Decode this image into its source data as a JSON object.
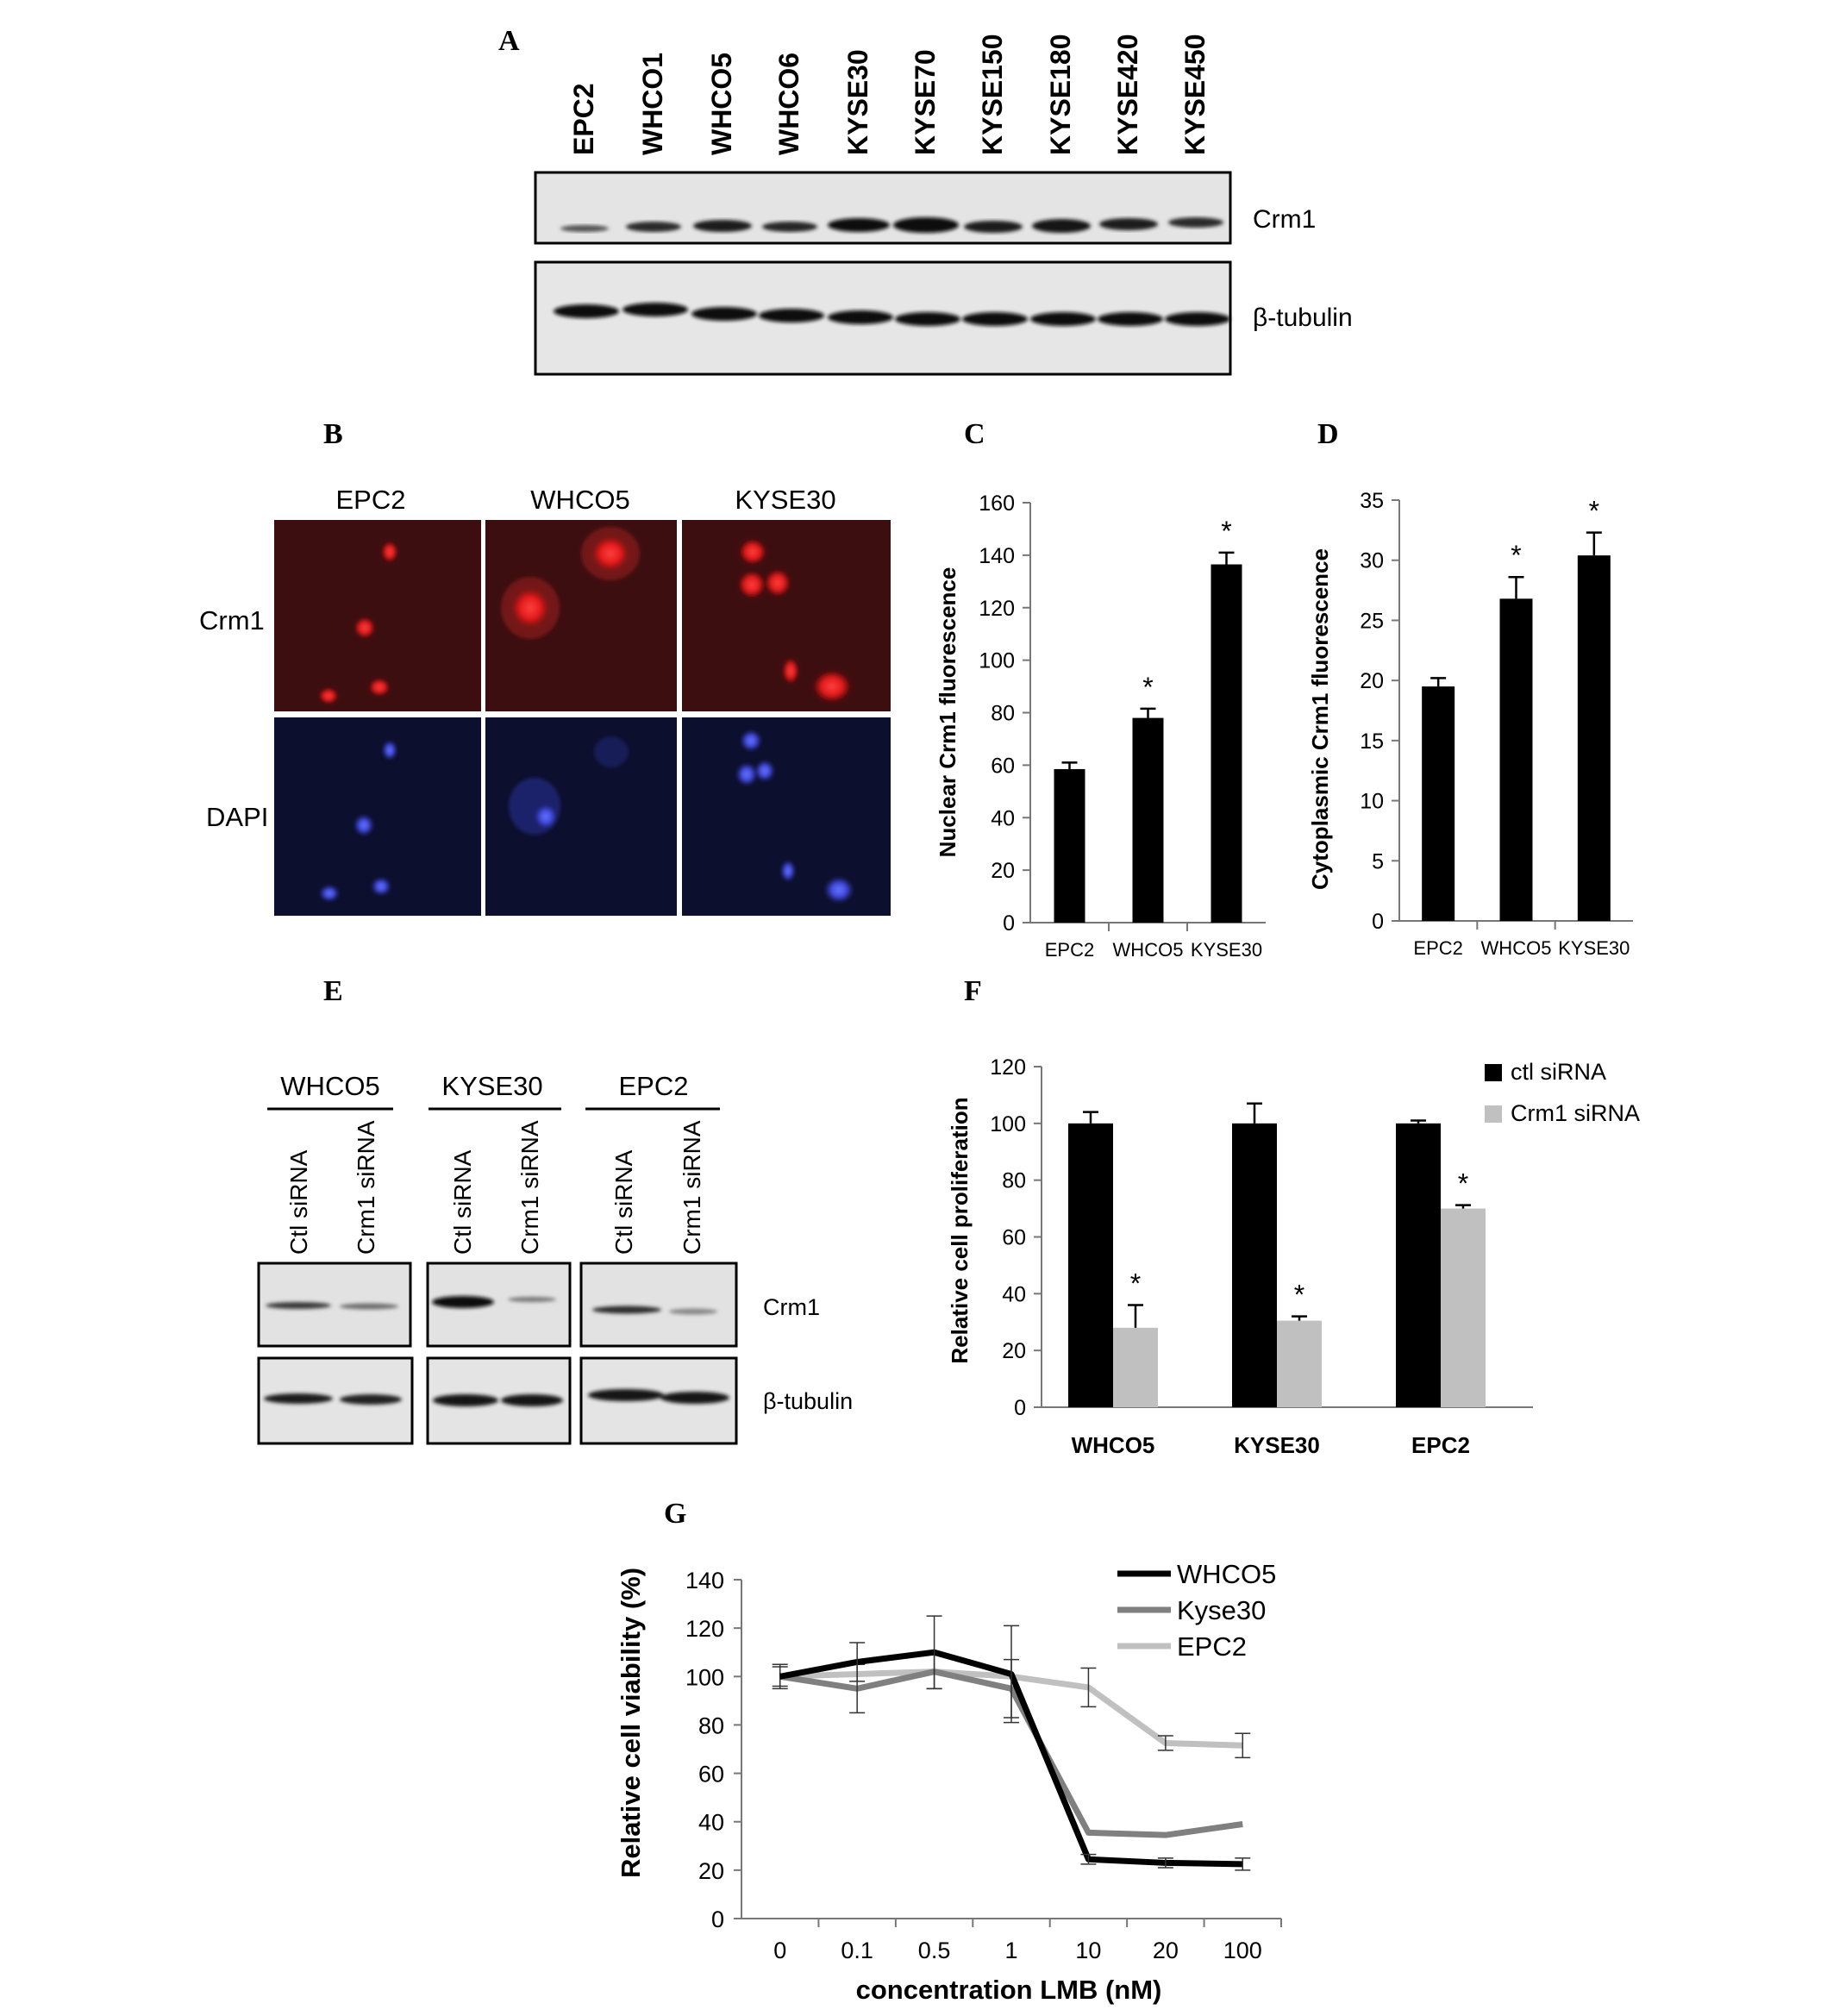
{
  "panels": {
    "A": {
      "letter": "A",
      "lanes": [
        "EPC2",
        "WHCO1",
        "WHCO5",
        "WHCO6",
        "KYSE30",
        "KYSE70",
        "KYSE150",
        "KYSE180",
        "KYSE420",
        "KYSE450"
      ],
      "blot_labels": [
        "Crm1",
        "β-tubulin"
      ]
    },
    "B": {
      "letter": "B",
      "columns": [
        "EPC2",
        "WHCO5",
        "KYSE30"
      ],
      "rows": [
        "Crm1",
        "DAPI"
      ]
    },
    "E": {
      "letter": "E",
      "groups": [
        "WHCO5",
        "KYSE30",
        "EPC2"
      ],
      "lanes": [
        "Ctl siRNA",
        "Crm1 siRNA"
      ],
      "blot_labels": [
        "Crm1",
        "β-tubulin"
      ]
    }
  },
  "chart_data": [
    {
      "id": "C",
      "letter": "C",
      "type": "bar",
      "categories": [
        "EPC2",
        "WHCO5",
        "KYSE30"
      ],
      "values": [
        58.5,
        78,
        136.5
      ],
      "errors": [
        2.5,
        3.5,
        4.5
      ],
      "significance": [
        "",
        "*",
        "*"
      ],
      "ylabel": "Nuclear Crm1 fluorescence",
      "ylim": [
        0,
        160
      ],
      "yticks": [
        0,
        20,
        40,
        60,
        80,
        100,
        120,
        140,
        160
      ],
      "color": "#000000"
    },
    {
      "id": "D",
      "letter": "D",
      "type": "bar",
      "categories": [
        "EPC2",
        "WHCO5",
        "KYSE30"
      ],
      "values": [
        19.5,
        26.8,
        30.4
      ],
      "errors": [
        0.7,
        1.8,
        1.9
      ],
      "significance": [
        "",
        "*",
        "*"
      ],
      "ylabel": "Cytoplasmic Crm1  fluorescence",
      "ylim": [
        0,
        35
      ],
      "yticks": [
        0,
        5,
        10,
        15,
        20,
        25,
        30,
        35
      ],
      "color": "#000000"
    },
    {
      "id": "F",
      "letter": "F",
      "type": "bar",
      "categories": [
        "WHCO5",
        "KYSE30",
        "EPC2"
      ],
      "series": [
        {
          "name": "ctl siRNA",
          "values": [
            100,
            100,
            100
          ],
          "errors": [
            4,
            7,
            1
          ],
          "significance": [
            "",
            "",
            ""
          ],
          "color": "#000000"
        },
        {
          "name": "Crm1 siRNA",
          "values": [
            28,
            30.5,
            70
          ],
          "errors": [
            8,
            1.5,
            1.2
          ],
          "significance": [
            "*",
            "*",
            "*"
          ],
          "color": "#c0c0c0"
        }
      ],
      "ylabel": "Relative cell proliferation",
      "ylim": [
        0,
        120
      ],
      "yticks": [
        0,
        20,
        40,
        60,
        80,
        100,
        120
      ],
      "legend": "top-right"
    },
    {
      "id": "G",
      "letter": "G",
      "type": "line",
      "x": [
        "0",
        "0.1",
        "0.5",
        "1",
        "10",
        "20",
        "100"
      ],
      "series": [
        {
          "name": "WHCO5",
          "values": [
            100,
            106,
            110,
            101,
            24.5,
            23,
            22.5
          ],
          "errors": [
            0,
            8,
            15,
            20,
            2,
            2,
            2.5
          ],
          "color": "#000000"
        },
        {
          "name": "Kyse30",
          "values": [
            100,
            95,
            102,
            95,
            35.5,
            34.5,
            39
          ],
          "errors": [
            5,
            10,
            7,
            12,
            0,
            0,
            0
          ],
          "color": "#808080"
        },
        {
          "name": "EPC2",
          "values": [
            100,
            101,
            102,
            100,
            95.5,
            72.5,
            71.5
          ],
          "errors": [
            4,
            0,
            0,
            0,
            8,
            3,
            5
          ],
          "color": "#c0c0c0"
        }
      ],
      "xlabel": "concentration LMB (nM)",
      "ylabel": "Relative cell viability (%)",
      "ylim": [
        0,
        140
      ],
      "yticks": [
        0,
        20,
        40,
        60,
        80,
        100,
        120,
        140
      ],
      "legend": "top-right"
    }
  ]
}
